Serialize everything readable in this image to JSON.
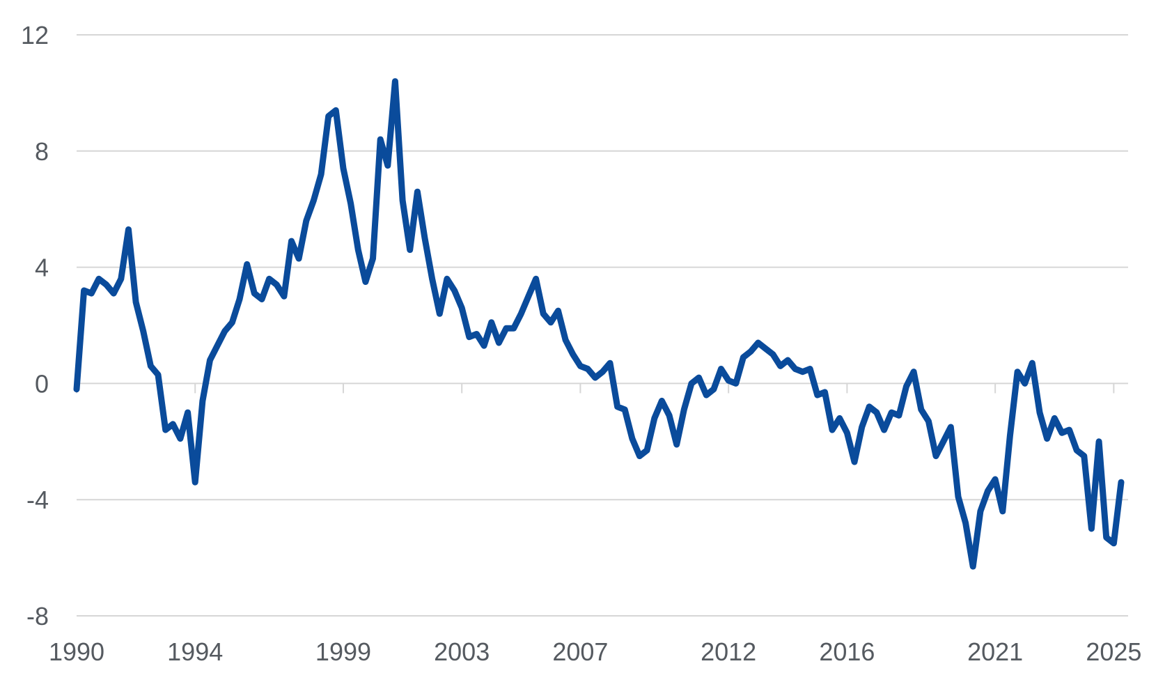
{
  "chart_data": {
    "type": "line",
    "title": "",
    "xlabel": "",
    "ylabel": "",
    "ylim": [
      -8,
      12
    ],
    "xlim": [
      1990,
      2025.25
    ],
    "yticks": [
      12,
      8,
      4,
      0,
      -4,
      -8
    ],
    "ytick_labels": [
      "12",
      "8",
      "4",
      "0",
      "-4",
      "-8"
    ],
    "xticks": [
      1990,
      1994,
      1999,
      2003,
      2007,
      2012,
      2016,
      2021,
      2025
    ],
    "xtick_labels": [
      "1990",
      "1994",
      "1999",
      "2003",
      "2007",
      "2012",
      "2016",
      "2021",
      "2025"
    ],
    "grid": true,
    "legend": "none",
    "line_color": "#0a4b9b",
    "grid_color": "#d6d6d6",
    "series": [
      {
        "x": [
          1990.0,
          1990.25,
          1990.5,
          1990.75,
          1991.0,
          1991.25,
          1991.5,
          1991.75,
          1992.0,
          1992.25,
          1992.5,
          1992.75,
          1993.0,
          1993.25,
          1993.5,
          1993.75,
          1994.0,
          1994.25,
          1994.5,
          1994.75,
          1995.0,
          1995.25,
          1995.5,
          1995.75,
          1996.0,
          1996.25,
          1996.5,
          1996.75,
          1997.0,
          1997.25,
          1997.5,
          1997.75,
          1998.0,
          1998.25,
          1998.5,
          1998.75,
          1999.0,
          1999.25,
          1999.5,
          1999.75,
          2000.0,
          2000.25,
          2000.5,
          2000.75,
          2001.0,
          2001.25,
          2001.5,
          2001.75,
          2002.0,
          2002.25,
          2002.5,
          2002.75,
          2003.0,
          2003.25,
          2003.5,
          2003.75,
          2004.0,
          2004.25,
          2004.5,
          2004.75,
          2005.0,
          2005.25,
          2005.5,
          2005.75,
          2006.0,
          2006.25,
          2006.5,
          2006.75,
          2007.0,
          2007.25,
          2007.5,
          2007.75,
          2008.0,
          2008.25,
          2008.5,
          2008.75,
          2009.0,
          2009.25,
          2009.5,
          2009.75,
          2010.0,
          2010.25,
          2010.5,
          2010.75,
          2011.0,
          2011.25,
          2011.5,
          2011.75,
          2012.0,
          2012.25,
          2012.5,
          2012.75,
          2013.0,
          2013.25,
          2013.5,
          2013.75,
          2014.0,
          2014.25,
          2014.5,
          2014.75,
          2015.0,
          2015.25,
          2015.5,
          2015.75,
          2016.0,
          2016.25,
          2016.5,
          2016.75,
          2017.0,
          2017.25,
          2017.5,
          2017.75,
          2018.0,
          2018.25,
          2018.5,
          2018.75,
          2019.0,
          2019.25,
          2019.5,
          2019.75,
          2020.0,
          2020.25,
          2020.5,
          2020.75,
          2021.0,
          2021.25,
          2021.5,
          2021.75,
          2022.0,
          2022.25,
          2022.5,
          2022.75,
          2023.0,
          2023.25,
          2023.5,
          2023.75,
          2024.0,
          2024.25,
          2024.5,
          2024.75,
          2025.0,
          2025.25
        ],
        "y": [
          -0.2,
          3.2,
          3.1,
          3.6,
          3.4,
          3.1,
          3.6,
          5.3,
          2.8,
          1.8,
          0.6,
          0.3,
          -1.6,
          -1.4,
          -1.9,
          -1.0,
          -3.4,
          -0.6,
          0.8,
          1.3,
          1.8,
          2.1,
          2.9,
          4.1,
          3.1,
          2.9,
          3.6,
          3.4,
          3.0,
          4.9,
          4.3,
          5.6,
          6.3,
          7.2,
          9.2,
          9.4,
          7.4,
          6.2,
          4.6,
          3.5,
          4.3,
          8.4,
          7.5,
          10.4,
          6.3,
          4.6,
          6.6,
          5.0,
          3.6,
          2.4,
          3.6,
          3.2,
          2.6,
          1.6,
          1.7,
          1.3,
          2.1,
          1.4,
          1.9,
          1.9,
          2.4,
          3.0,
          3.6,
          2.4,
          2.1,
          2.5,
          1.5,
          1.0,
          0.6,
          0.5,
          0.2,
          0.4,
          0.7,
          -0.8,
          -0.9,
          -1.9,
          -2.5,
          -2.3,
          -1.2,
          -0.6,
          -1.1,
          -2.1,
          -0.9,
          0.0,
          0.2,
          -0.4,
          -0.2,
          0.5,
          0.1,
          0.0,
          0.9,
          1.1,
          1.4,
          1.2,
          1.0,
          0.6,
          0.8,
          0.5,
          0.4,
          0.5,
          -0.4,
          -0.3,
          -1.6,
          -1.2,
          -1.7,
          -2.7,
          -1.5,
          -0.8,
          -1.0,
          -1.6,
          -1.0,
          -1.1,
          -0.1,
          0.4,
          -0.9,
          -1.3,
          -2.5,
          -2.0,
          -1.5,
          -3.9,
          -4.8,
          -6.3,
          -4.4,
          -3.7,
          -3.3,
          -4.4,
          -1.8,
          0.4,
          0.0,
          0.7,
          -1.0,
          -1.9,
          -1.2,
          -1.7,
          -1.6,
          -2.3,
          -2.5,
          -5.0,
          -2.0,
          -5.3,
          -5.5,
          -3.4
        ]
      }
    ]
  }
}
